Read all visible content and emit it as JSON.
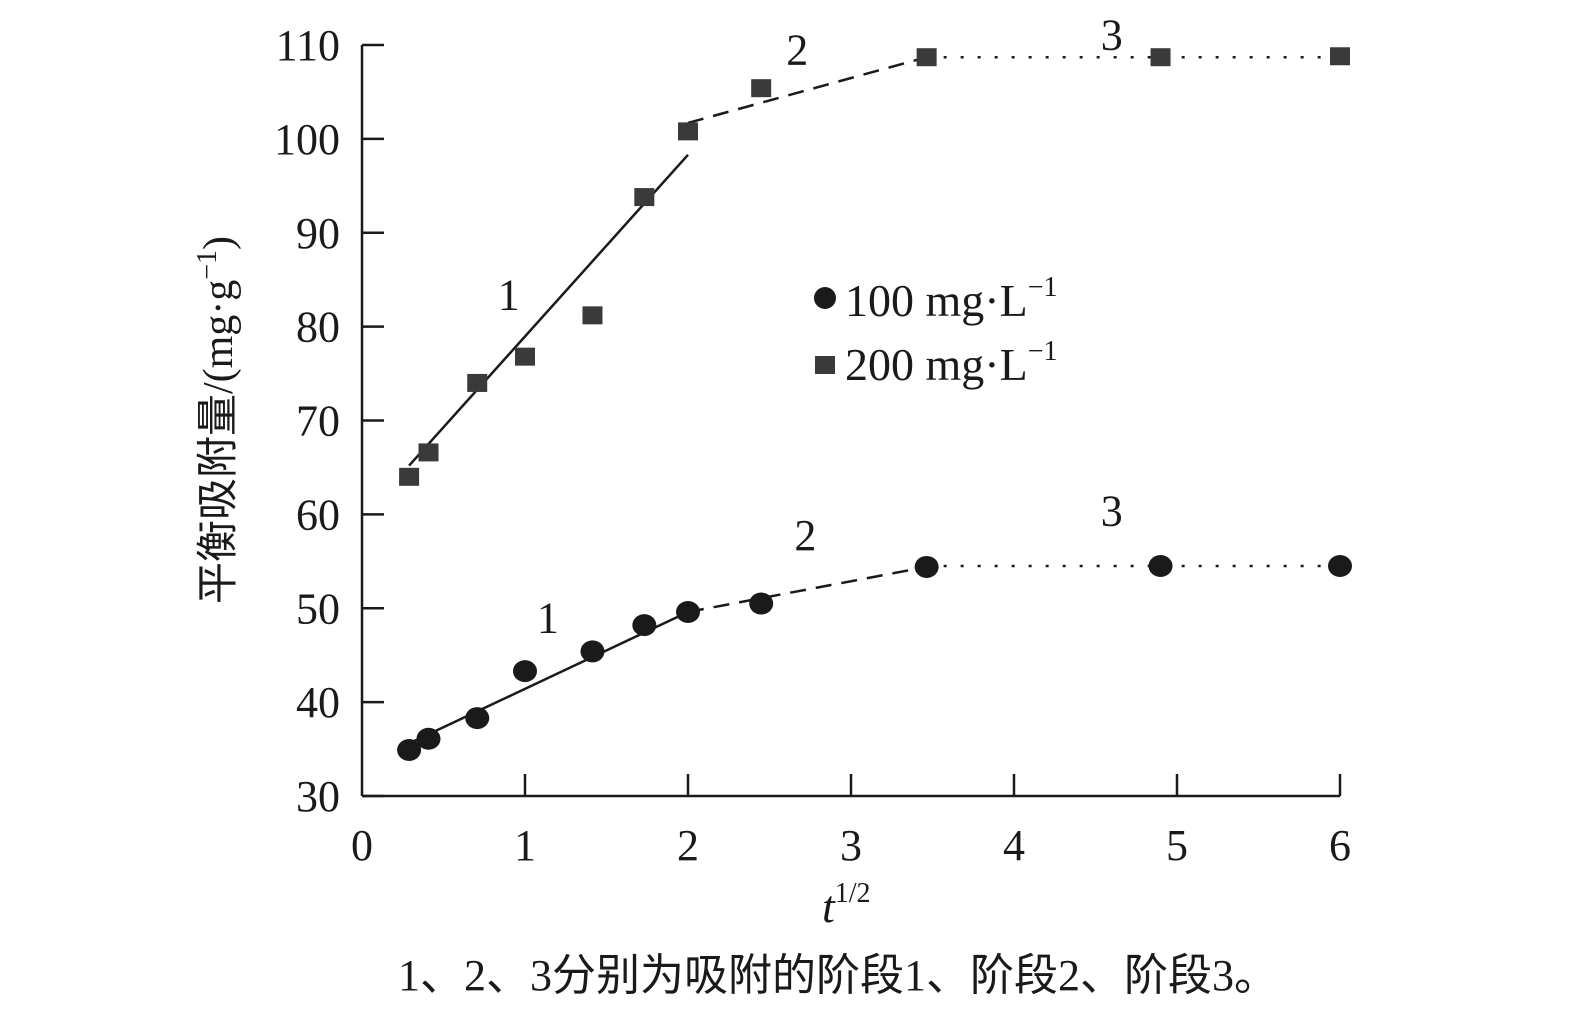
{
  "chart_data": {
    "type": "scatter",
    "title": "",
    "xlabel": "t",
    "xlabel_sup": "1/2",
    "ylabel": "平衡吸附量/(mg·g",
    "ylabel_sup": "−1",
    "ylabel_close": ")",
    "xlim": [
      0,
      6
    ],
    "ylim": [
      30,
      110
    ],
    "xticks": [
      0,
      1,
      2,
      3,
      4,
      5,
      6
    ],
    "yticks": [
      30,
      40,
      50,
      60,
      70,
      80,
      90,
      100,
      110
    ],
    "grid": false,
    "legend_position": "center-right",
    "x": [
      0.289,
      0.408,
      0.707,
      1.0,
      1.414,
      1.732,
      2.0,
      2.449,
      3.464,
      4.899,
      6.0
    ],
    "series": [
      {
        "name": "100 mg·L",
        "name_sup": "−1",
        "marker": "circle",
        "values": [
          34.9,
          36.1,
          38.3,
          43.3,
          45.4,
          48.2,
          49.6,
          50.5,
          54.4,
          54.5,
          54.5
        ],
        "fits": [
          {
            "stage": "1",
            "style": "solid",
            "x": [
              0.289,
              2.0
            ],
            "y": [
              35.6,
              49.6
            ]
          },
          {
            "stage": "2",
            "style": "dashed",
            "x": [
              2.0,
              3.464
            ],
            "y": [
              49.6,
              54.4
            ]
          },
          {
            "stage": "3",
            "style": "dotted",
            "x": [
              3.464,
              6.0
            ],
            "y": [
              54.5,
              54.5
            ]
          }
        ],
        "stage_labels": [
          {
            "text": "1",
            "x": 1.14,
            "y": 49.0
          },
          {
            "text": "2",
            "x": 2.72,
            "y": 57.8
          },
          {
            "text": "3",
            "x": 4.6,
            "y": 60.4
          }
        ]
      },
      {
        "name": "200 mg·L",
        "name_sup": "−1",
        "marker": "square",
        "values": [
          64.0,
          66.6,
          74.0,
          76.8,
          81.2,
          93.8,
          100.8,
          105.4,
          108.7,
          108.7,
          108.8
        ],
        "fits": [
          {
            "stage": "1",
            "style": "solid",
            "x": [
              0.289,
              2.0
            ],
            "y": [
              65.2,
              98.3
            ]
          },
          {
            "stage": "2",
            "style": "dashed",
            "x": [
              2.0,
              3.464
            ],
            "y": [
              101.7,
              108.7
            ]
          },
          {
            "stage": "3",
            "style": "dotted",
            "x": [
              3.464,
              6.0
            ],
            "y": [
              108.7,
              108.7
            ]
          }
        ],
        "stage_labels": [
          {
            "text": "1",
            "x": 0.9,
            "y": 83.4
          },
          {
            "text": "2",
            "x": 2.67,
            "y": 109.5
          },
          {
            "text": "3",
            "x": 4.6,
            "y": 111.1
          }
        ]
      }
    ],
    "caption": "1、2、3分别为吸附的阶段1、阶段2、阶段3。"
  }
}
